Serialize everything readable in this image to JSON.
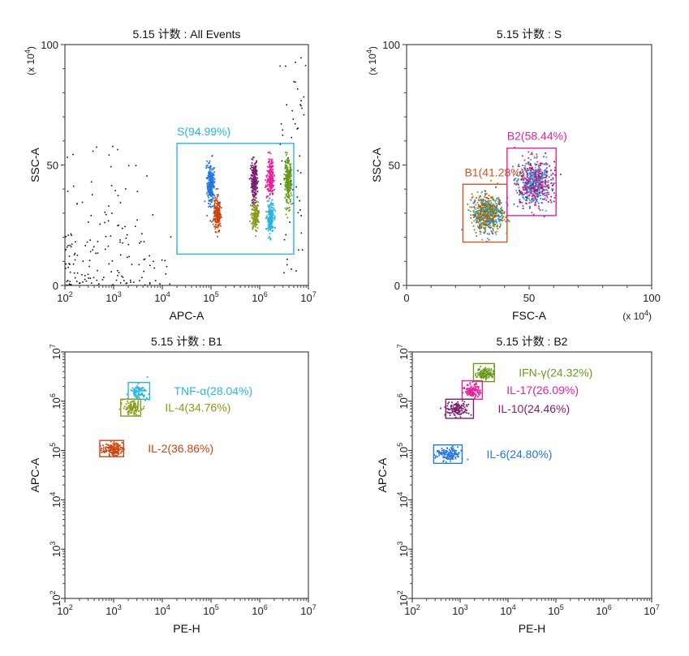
{
  "chart_data": [
    {
      "type": "scatter",
      "title": "5.15 计数 : All Events",
      "xlabel": "APC-A",
      "ylabel": "SSC-A",
      "xscale": "log",
      "xlim": [
        100,
        10000000
      ],
      "x_ticks": [
        {
          "value": 100,
          "base": "10",
          "exp": "2"
        },
        {
          "value": 1000,
          "base": "10",
          "exp": "3"
        },
        {
          "value": 10000,
          "base": "10",
          "exp": "4"
        },
        {
          "value": 100000,
          "base": "10",
          "exp": "5"
        },
        {
          "value": 1000000,
          "base": "10",
          "exp": "6"
        },
        {
          "value": 10000000,
          "base": "10",
          "exp": "7"
        }
      ],
      "yscale": "linear",
      "ylim": [
        0,
        100
      ],
      "y_ticks": [
        {
          "value": 0,
          "label": "0"
        },
        {
          "value": 50,
          "label": "50"
        },
        {
          "value": 100,
          "label": "100"
        }
      ],
      "y_multiplier": {
        "prefix": "(x 10",
        "exp": "4",
        "suffix": ")"
      },
      "gates": [
        {
          "label": "S(94.99%)",
          "color": "#29b6e0",
          "x": [
            20000,
            5000000
          ],
          "y": [
            13,
            59
          ]
        }
      ],
      "clusters": [
        {
          "x": 95000,
          "y_center": 42,
          "y_spread": 8,
          "color": "#2277e0",
          "count": 260
        },
        {
          "x": 130000,
          "y_center": 30,
          "y_spread": 6,
          "color": "#cc4411",
          "count": 220
        },
        {
          "x": 750000,
          "y_center": 43,
          "y_spread": 8,
          "color": "#7a1f6e",
          "count": 200
        },
        {
          "x": 780000,
          "y_center": 29,
          "y_spread": 5,
          "color": "#8a9a1a",
          "count": 160
        },
        {
          "x": 1600000,
          "y_center": 45,
          "y_spread": 7,
          "color": "#e8209a",
          "count": 200
        },
        {
          "x": 1600000,
          "y_center": 28,
          "y_spread": 6,
          "color": "#29b6e0",
          "count": 200
        },
        {
          "x": 3700000,
          "y_center": 43,
          "y_spread": 8,
          "color": "#6a9a1a",
          "count": 240
        }
      ],
      "background_events": {
        "color": "#111111",
        "count": 230
      }
    },
    {
      "type": "scatter",
      "title": "5.15 计数 : S",
      "xlabel": "FSC-A",
      "ylabel": "SSC-A",
      "xscale": "linear",
      "xlim": [
        0,
        100
      ],
      "x_ticks": [
        {
          "value": 0,
          "label": "0"
        },
        {
          "value": 50,
          "label": "50"
        },
        {
          "value": 100,
          "label": "100"
        }
      ],
      "x_multiplier": {
        "prefix": "(x 10",
        "exp": "4",
        "suffix": ")"
      },
      "yscale": "linear",
      "ylim": [
        0,
        100
      ],
      "y_ticks": [
        {
          "value": 0,
          "label": "0"
        },
        {
          "value": 50,
          "label": "50"
        },
        {
          "value": 100,
          "label": "100"
        }
      ],
      "y_multiplier": {
        "prefix": "(x 10",
        "exp": "4",
        "suffix": ")"
      },
      "gates": [
        {
          "label": "B1(41.28%)",
          "color": "#cc5522",
          "x": [
            23,
            41
          ],
          "y": [
            18,
            42
          ]
        },
        {
          "label": "B2(58.44%)",
          "color": "#e8209a",
          "x": [
            41,
            61
          ],
          "y": [
            29,
            57
          ]
        }
      ],
      "clusters": [
        {
          "x_center": 33,
          "y_center": 30,
          "x_spread": 4.5,
          "y_spread": 5.5,
          "multicolor": [
            "#2277e0",
            "#cc4411",
            "#8a9a1a",
            "#29b6e0",
            "#6a9a1a",
            "#b0601a"
          ],
          "count": 650
        },
        {
          "x_center": 52,
          "y_center": 43,
          "x_spread": 5,
          "y_spread": 6.5,
          "multicolor": [
            "#e8209a",
            "#7a1f6e",
            "#2277e0",
            "#29b6e0",
            "#cc2277"
          ],
          "count": 650
        }
      ]
    },
    {
      "type": "scatter",
      "title": "5.15 计数 : B1",
      "xlabel": "PE-H",
      "ylabel": "APC-A",
      "xscale": "log",
      "xlim": [
        100,
        10000000
      ],
      "x_ticks": [
        {
          "value": 100,
          "base": "10",
          "exp": "2"
        },
        {
          "value": 1000,
          "base": "10",
          "exp": "3"
        },
        {
          "value": 10000,
          "base": "10",
          "exp": "4"
        },
        {
          "value": 100000,
          "base": "10",
          "exp": "5"
        },
        {
          "value": 1000000,
          "base": "10",
          "exp": "6"
        },
        {
          "value": 10000000,
          "base": "10",
          "exp": "7"
        }
      ],
      "yscale": "log",
      "ylim": [
        100,
        10000000
      ],
      "y_ticks": [
        {
          "value": 100,
          "base": "10",
          "exp": "2"
        },
        {
          "value": 1000,
          "base": "10",
          "exp": "3"
        },
        {
          "value": 10000,
          "base": "10",
          "exp": "4"
        },
        {
          "value": 100000,
          "base": "10",
          "exp": "5"
        },
        {
          "value": 1000000,
          "base": "10",
          "exp": "6"
        },
        {
          "value": 10000000,
          "base": "10",
          "exp": "7"
        }
      ],
      "gates": [
        {
          "label": "TNF-α(28.04%)",
          "color": "#29b6e0",
          "x": [
            2000,
            5500
          ],
          "y": [
            1100000,
            2400000
          ]
        },
        {
          "label": "IL-4(34.76%)",
          "color": "#8a9a1a",
          "x": [
            1400,
            3600
          ],
          "y": [
            500000,
            1100000
          ]
        },
        {
          "label": "IL-2(36.86%)",
          "color": "#cc4411",
          "x": [
            520,
            1600
          ],
          "y": [
            75000,
            160000
          ]
        }
      ],
      "clusters": [
        {
          "x_center": 3200,
          "y_center": 1600000,
          "x_spread": 0.09,
          "y_spread": 0.07,
          "color": "#29b6e0",
          "count": 90
        },
        {
          "x_center": 2300,
          "y_center": 760000,
          "x_spread": 0.09,
          "y_spread": 0.07,
          "color": "#8a9a1a",
          "count": 110
        },
        {
          "x_center": 900,
          "y_center": 110000,
          "x_spread": 0.1,
          "y_spread": 0.06,
          "color": "#cc4411",
          "count": 130
        }
      ]
    },
    {
      "type": "scatter",
      "title": "5.15 计数 : B2",
      "xlabel": "PE-H",
      "ylabel": "APC-A",
      "xscale": "log",
      "xlim": [
        100,
        10000000
      ],
      "x_ticks": [
        {
          "value": 100,
          "base": "10",
          "exp": "2"
        },
        {
          "value": 1000,
          "base": "10",
          "exp": "3"
        },
        {
          "value": 10000,
          "base": "10",
          "exp": "4"
        },
        {
          "value": 100000,
          "base": "10",
          "exp": "5"
        },
        {
          "value": 1000000,
          "base": "10",
          "exp": "6"
        },
        {
          "value": 10000000,
          "base": "10",
          "exp": "7"
        }
      ],
      "yscale": "log",
      "ylim": [
        100,
        10000000
      ],
      "y_ticks": [
        {
          "value": 100,
          "base": "10",
          "exp": "2"
        },
        {
          "value": 1000,
          "base": "10",
          "exp": "3"
        },
        {
          "value": 10000,
          "base": "10",
          "exp": "4"
        },
        {
          "value": 100000,
          "base": "10",
          "exp": "5"
        },
        {
          "value": 1000000,
          "base": "10",
          "exp": "6"
        },
        {
          "value": 10000000,
          "base": "10",
          "exp": "7"
        }
      ],
      "gates": [
        {
          "label": "IFN-γ(24.32%)",
          "color": "#6a9a1a",
          "x": [
            1900,
            5200
          ],
          "y": [
            2500000,
            5800000
          ]
        },
        {
          "label": "IL-17(26.09%)",
          "color": "#e8209a",
          "x": [
            1100,
            2900
          ],
          "y": [
            1100000,
            2600000
          ]
        },
        {
          "label": "IL-10(24.46%)",
          "color": "#7a1f6e",
          "x": [
            500,
            1900
          ],
          "y": [
            450000,
            1100000
          ]
        },
        {
          "label": "IL-6(24.80%)",
          "color": "#2277e0",
          "x": [
            280,
            1100
          ],
          "y": [
            55000,
            130000
          ]
        }
      ],
      "clusters": [
        {
          "x_center": 3300,
          "y_center": 3800000,
          "x_spread": 0.09,
          "y_spread": 0.06,
          "color": "#6a9a1a",
          "count": 120
        },
        {
          "x_center": 1800,
          "y_center": 1700000,
          "x_spread": 0.08,
          "y_spread": 0.07,
          "color": "#e8209a",
          "count": 120
        },
        {
          "x_center": 850,
          "y_center": 720000,
          "x_spread": 0.12,
          "y_spread": 0.07,
          "color": "#7a1f6e",
          "count": 130
        },
        {
          "x_center": 560,
          "y_center": 85000,
          "x_spread": 0.13,
          "y_spread": 0.07,
          "color": "#2277e0",
          "count": 140
        }
      ]
    }
  ]
}
